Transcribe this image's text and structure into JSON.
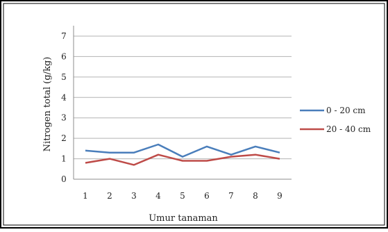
{
  "chart_data": {
    "type": "line",
    "title": "",
    "xlabel": "Umur tanaman",
    "ylabel": "Nitrogen total (g/kg)",
    "categories": [
      "1",
      "2",
      "3",
      "4",
      "5",
      "6",
      "7",
      "8",
      "9"
    ],
    "ylim": [
      0,
      7
    ],
    "yticks": [
      "0",
      "1",
      "2",
      "3",
      "4",
      "5",
      "6",
      "7"
    ],
    "grid": "horizontal",
    "legend_position": "right",
    "series": [
      {
        "name": "0 - 20 cm",
        "color": "#4a7ebb",
        "values": [
          1.4,
          1.3,
          1.3,
          1.7,
          1.1,
          1.6,
          1.2,
          1.6,
          1.3
        ]
      },
      {
        "name": "20 - 40 cm",
        "color": "#be4b48",
        "values": [
          0.8,
          1.0,
          0.7,
          1.2,
          0.9,
          0.9,
          1.1,
          1.2,
          1.0
        ]
      }
    ]
  }
}
